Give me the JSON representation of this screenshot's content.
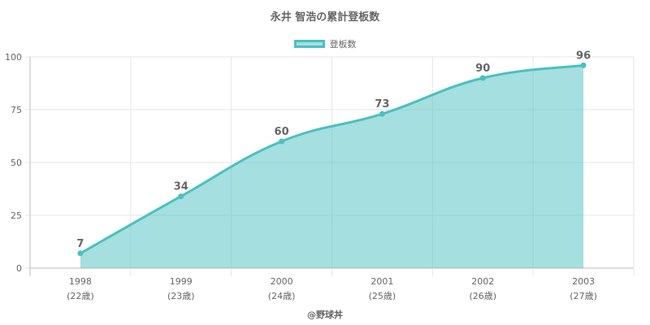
{
  "header": {
    "title": "永井 智浩の累計登板数"
  },
  "footer": {
    "credit": "@野球丼"
  },
  "colors": {
    "line": "#4bc0c0",
    "fill": "rgba(75,192,192,0.5)",
    "grid": "#e6e6e6",
    "axis": "#bbbbbb",
    "text": "#666666"
  },
  "chart_data": {
    "type": "area",
    "series": [
      {
        "name": "登板数",
        "values": [
          7,
          34,
          60,
          73,
          90,
          96
        ]
      }
    ],
    "categories": [
      "1998",
      "1999",
      "2000",
      "2001",
      "2002",
      "2003"
    ],
    "sublabels": [
      "(22歳)",
      "(23歳)",
      "(24歳)",
      "(25歳)",
      "(26歳)",
      "(27歳)"
    ],
    "y_ticks": [
      "0",
      "25",
      "50",
      "75",
      "100"
    ],
    "ylim": [
      0,
      100
    ],
    "grid": true,
    "legend": "top-center"
  }
}
